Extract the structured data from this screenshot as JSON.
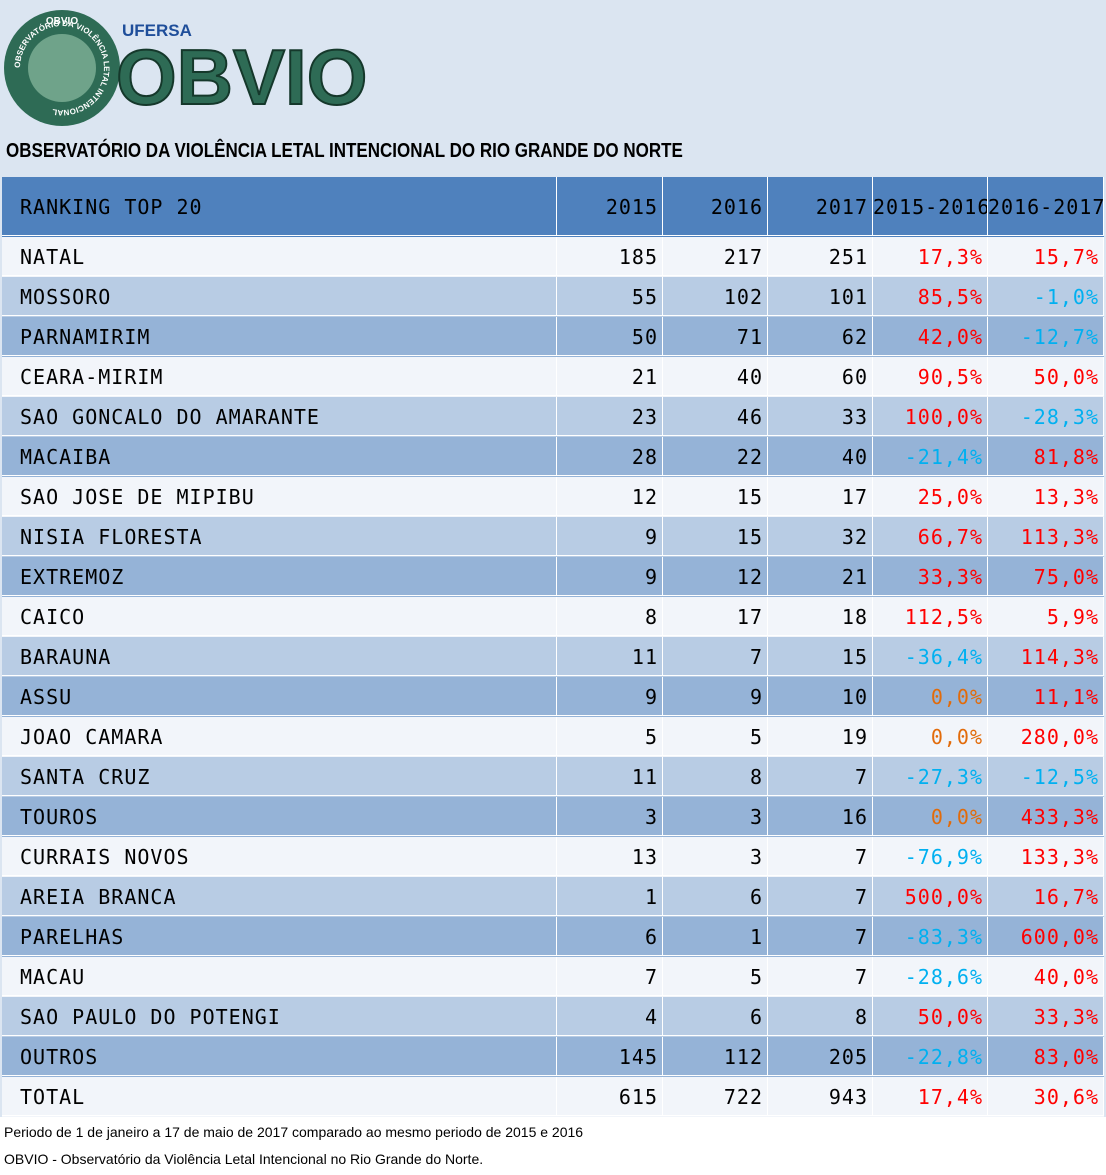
{
  "logo": {
    "ring_text": "OBSERVATÓRIO DA VIOLÊNCIA LETAL INTENCIONAL",
    "badge": "OBVIO",
    "university": "UFERSA",
    "brand": "OBVIO"
  },
  "header": {
    "title": "OBSERVATÓRIO DA VIOLÊNCIA LETAL INTENCIONAL DO RIO GRANDE DO NORTE"
  },
  "table": {
    "columns": [
      "RANKING TOP 20",
      "2015",
      "2016",
      "2017",
      "2015-2016",
      "2016-2017"
    ],
    "percent_colors": {
      "positive": "#ff0000",
      "negative": "#00b0f0",
      "zero": "#e26b0a"
    },
    "row_colors": [
      "#f2f5fa",
      "#b8cce4",
      "#95b3d7"
    ],
    "rows": [
      [
        "NATAL",
        185,
        217,
        251,
        "17,3%",
        "15,7%"
      ],
      [
        "MOSSORO",
        55,
        102,
        101,
        "85,5%",
        "-1,0%"
      ],
      [
        "PARNAMIRIM",
        50,
        71,
        62,
        "42,0%",
        "-12,7%"
      ],
      [
        "CEARA-MIRIM",
        21,
        40,
        60,
        "90,5%",
        "50,0%"
      ],
      [
        "SAO GONCALO DO AMARANTE",
        23,
        46,
        33,
        "100,0%",
        "-28,3%"
      ],
      [
        "MACAIBA",
        28,
        22,
        40,
        "-21,4%",
        "81,8%"
      ],
      [
        "SAO JOSE DE MIPIBU",
        12,
        15,
        17,
        "25,0%",
        "13,3%"
      ],
      [
        "NISIA FLORESTA",
        9,
        15,
        32,
        "66,7%",
        "113,3%"
      ],
      [
        "EXTREMOZ",
        9,
        12,
        21,
        "33,3%",
        "75,0%"
      ],
      [
        "CAICO",
        8,
        17,
        18,
        "112,5%",
        "5,9%"
      ],
      [
        "BARAUNA",
        11,
        7,
        15,
        "-36,4%",
        "114,3%"
      ],
      [
        "ASSU",
        9,
        9,
        10,
        "0,0%",
        "11,1%"
      ],
      [
        "JOAO CAMARA",
        5,
        5,
        19,
        "0,0%",
        "280,0%"
      ],
      [
        "SANTA CRUZ",
        11,
        8,
        7,
        "-27,3%",
        "-12,5%"
      ],
      [
        "TOUROS",
        3,
        3,
        16,
        "0,0%",
        "433,3%"
      ],
      [
        "CURRAIS NOVOS",
        13,
        3,
        7,
        "-76,9%",
        "133,3%"
      ],
      [
        "AREIA BRANCA",
        1,
        6,
        7,
        "500,0%",
        "16,7%"
      ],
      [
        "PARELHAS",
        6,
        1,
        7,
        "-83,3%",
        "600,0%"
      ],
      [
        "MACAU",
        7,
        5,
        7,
        "-28,6%",
        "40,0%"
      ],
      [
        "SAO PAULO DO POTENGI",
        4,
        6,
        8,
        "50,0%",
        "33,3%"
      ],
      [
        "OUTROS",
        145,
        112,
        205,
        "-22,8%",
        "83,0%"
      ],
      [
        "TOTAL",
        615,
        722,
        943,
        "17,4%",
        "30,6%"
      ]
    ]
  },
  "footer": {
    "notes": [
      "Periodo de 1 de janeiro a 17 de maio de 2017 comparado ao mesmo periodo de 2015 e 2016",
      "OBVIO - Observatório da Violência Letal Intencional no Rio Grande do Norte."
    ]
  }
}
